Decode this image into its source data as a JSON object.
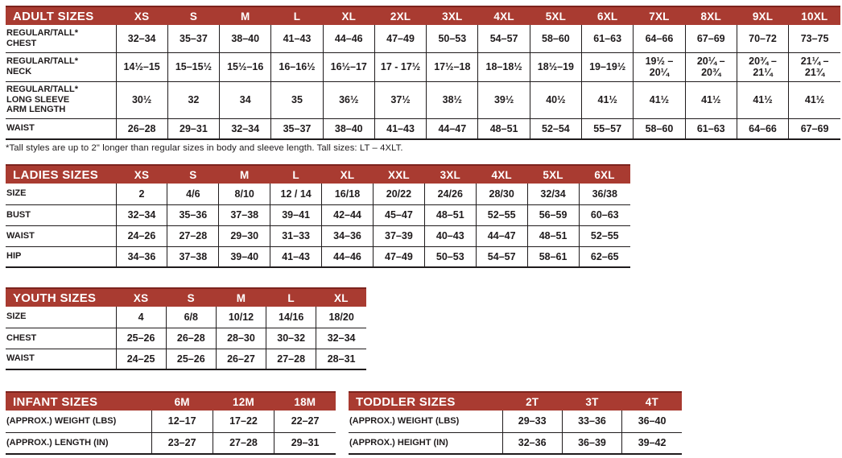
{
  "colors": {
    "header_bg": "#a93b31",
    "header_top_edge": "#7c231d",
    "header_text": "#ffffff",
    "grid_line": "#1f1b1c",
    "cell_text": "#1f1b1c",
    "page_bg": "#ffffff"
  },
  "tables": [
    {
      "id": "adult",
      "title": "ADULT SIZES",
      "columns": [
        "XS",
        "S",
        "M",
        "L",
        "XL",
        "2XL",
        "3XL",
        "4XL",
        "5XL",
        "6XL",
        "7XL",
        "8XL",
        "9XL",
        "10XL"
      ],
      "rows": [
        {
          "label": "REGULAR/TALL*\nCHEST",
          "values": [
            "32–34",
            "35–37",
            "38–40",
            "41–43",
            "44–46",
            "47–49",
            "50–53",
            "54–57",
            "58–60",
            "61–63",
            "64–66",
            "67–69",
            "70–72",
            "73–75"
          ]
        },
        {
          "label": "REGULAR/TALL*\nNECK",
          "values": [
            "14½–15",
            "15–15½",
            "15½–16",
            "16–16½",
            "16½–17",
            "17 - 17½",
            "17½–18",
            "18–18½",
            "18½–19",
            "19–19½",
            "19½ –\n20¼",
            "20¼ –\n20¾",
            "20¾ –\n21¼",
            "21¼ –\n21¾"
          ]
        },
        {
          "label": "REGULAR/TALL*\nLONG SLEEVE\nARM LENGTH",
          "values": [
            "30½",
            "32",
            "34",
            "35",
            "36½",
            "37½",
            "38½",
            "39½",
            "40½",
            "41½",
            "41½",
            "41½",
            "41½",
            "41½"
          ]
        },
        {
          "label": "WAIST",
          "values": [
            "26–28",
            "29–31",
            "32–34",
            "35–37",
            "38–40",
            "41–43",
            "44–47",
            "48–51",
            "52–54",
            "55–57",
            "58–60",
            "61–63",
            "64–66",
            "67–69"
          ]
        }
      ],
      "footnote": "*Tall styles are up to 2\" longer than regular sizes in body and sleeve length. Tall sizes: LT – 4XLT."
    },
    {
      "id": "ladies",
      "title": "LADIES SIZES",
      "columns": [
        "XS",
        "S",
        "M",
        "L",
        "XL",
        "XXL",
        "3XL",
        "4XL",
        "5XL",
        "6XL"
      ],
      "rows": [
        {
          "label": "SIZE",
          "values": [
            "2",
            "4/6",
            "8/10",
            "12 / 14",
            "16/18",
            "20/22",
            "24/26",
            "28/30",
            "32/34",
            "36/38"
          ]
        },
        {
          "label": "BUST",
          "values": [
            "32–34",
            "35–36",
            "37–38",
            "39–41",
            "42–44",
            "45–47",
            "48–51",
            "52–55",
            "56–59",
            "60–63"
          ]
        },
        {
          "label": "WAIST",
          "values": [
            "24–26",
            "27–28",
            "29–30",
            "31–33",
            "34–36",
            "37–39",
            "40–43",
            "44–47",
            "48–51",
            "52–55"
          ]
        },
        {
          "label": "HIP",
          "values": [
            "34–36",
            "37–38",
            "39–40",
            "41–43",
            "44–46",
            "47–49",
            "50–53",
            "54–57",
            "58–61",
            "62–65"
          ]
        }
      ]
    },
    {
      "id": "youth",
      "title": "YOUTH SIZES",
      "columns": [
        "XS",
        "S",
        "M",
        "L",
        "XL"
      ],
      "rows": [
        {
          "label": "SIZE",
          "values": [
            "4",
            "6/8",
            "10/12",
            "14/16",
            "18/20"
          ]
        },
        {
          "label": "CHEST",
          "values": [
            "25–26",
            "26–28",
            "28–30",
            "30–32",
            "32–34"
          ]
        },
        {
          "label": "WAIST",
          "values": [
            "24–25",
            "25–26",
            "26–27",
            "27–28",
            "28–31"
          ]
        }
      ]
    },
    {
      "id": "infant",
      "title": "INFANT SIZES",
      "columns": [
        "6M",
        "12M",
        "18M"
      ],
      "rows": [
        {
          "label": "(APPROX.) WEIGHT (LBS)",
          "values": [
            "12–17",
            "17–22",
            "22–27"
          ]
        },
        {
          "label": "(APPROX.) LENGTH (IN)",
          "values": [
            "23–27",
            "27–28",
            "29–31"
          ]
        }
      ]
    },
    {
      "id": "toddler",
      "title": "TODDLER SIZES",
      "columns": [
        "2T",
        "3T",
        "4T"
      ],
      "rows": [
        {
          "label": "(APPROX.) WEIGHT (LBS)",
          "values": [
            "29–33",
            "33–36",
            "36–40"
          ]
        },
        {
          "label": "(APPROX.) HEIGHT (IN)",
          "values": [
            "32–36",
            "36–39",
            "39–42"
          ]
        }
      ]
    }
  ]
}
